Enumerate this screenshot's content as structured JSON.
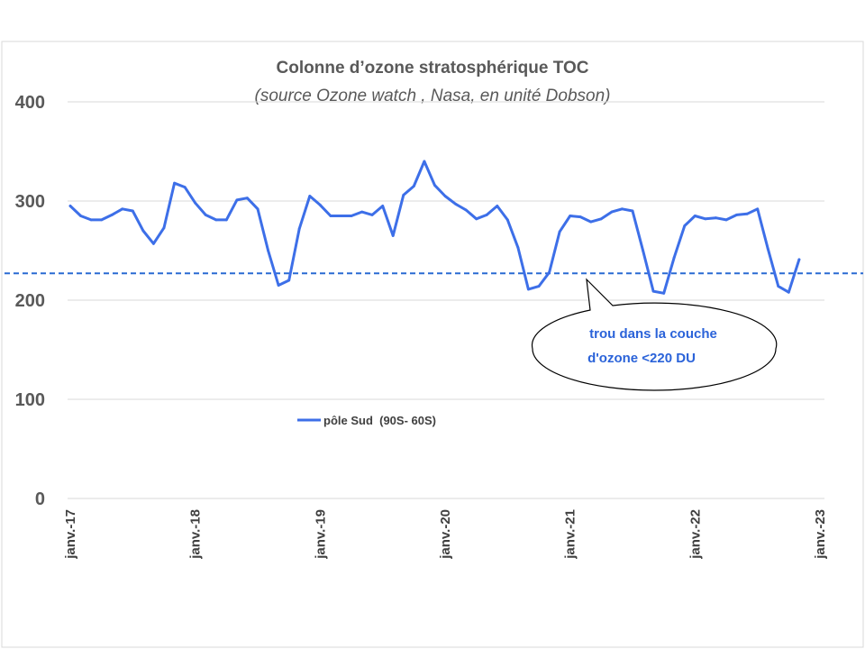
{
  "chart_data": {
    "type": "line",
    "title": "Colonne d’ozone stratosphérique TOC",
    "subtitle": "(source Ozone watch , Nasa, en unité Dobson)",
    "ylim": [
      0,
      400
    ],
    "yticks": [
      "0",
      "100",
      "200",
      "300",
      "400"
    ],
    "xlim": [
      "2017-01",
      "2023-01"
    ],
    "xticks": [
      {
        "date": "2017-01",
        "label": "janv.-17"
      },
      {
        "date": "2018-01",
        "label": "janv.-18"
      },
      {
        "date": "2019-01",
        "label": "janv.-19"
      },
      {
        "date": "2020-01",
        "label": "janv.-20"
      },
      {
        "date": "2021-01",
        "label": "janv.-21"
      },
      {
        "date": "2022-01",
        "label": "janv.-22"
      },
      {
        "date": "2023-01",
        "label": "janv.-23"
      }
    ],
    "grid": "horizontal",
    "legend_position": "center-left",
    "colors": {
      "series": "#3d6fe8",
      "threshold": "#2a6ad3",
      "grid": "#d9d9d9"
    },
    "series": [
      {
        "name": "pôle Sud  (90S- 60S)",
        "x": [
          "2017-01",
          "2017-02",
          "2017-03",
          "2017-04",
          "2017-05",
          "2017-06",
          "2017-07",
          "2017-08",
          "2017-09",
          "2017-10",
          "2017-11",
          "2017-12",
          "2018-01",
          "2018-02",
          "2018-03",
          "2018-04",
          "2018-05",
          "2018-06",
          "2018-07",
          "2018-08",
          "2018-09",
          "2018-10",
          "2018-11",
          "2018-12",
          "2019-01",
          "2019-02",
          "2019-03",
          "2019-04",
          "2019-05",
          "2019-06",
          "2019-07",
          "2019-08",
          "2019-09",
          "2019-10",
          "2019-11",
          "2019-12",
          "2020-01",
          "2020-02",
          "2020-03",
          "2020-04",
          "2020-05",
          "2020-06",
          "2020-07",
          "2020-08",
          "2020-09",
          "2020-10",
          "2020-11",
          "2020-12",
          "2021-01",
          "2021-02",
          "2021-03",
          "2021-04",
          "2021-05",
          "2021-06",
          "2021-07",
          "2021-08",
          "2021-09",
          "2021-10",
          "2021-11",
          "2021-12",
          "2022-01",
          "2022-02",
          "2022-03",
          "2022-04",
          "2022-05",
          "2022-06",
          "2022-07",
          "2022-08",
          "2022-09",
          "2022-10",
          "2022-11"
        ],
        "values": [
          295,
          285,
          281,
          281,
          286,
          292,
          290,
          270,
          257,
          273,
          318,
          314,
          298,
          286,
          281,
          281,
          301,
          303,
          292,
          250,
          215,
          220,
          272,
          305,
          296,
          285,
          285,
          285,
          289,
          286,
          295,
          265,
          306,
          315,
          340,
          316,
          305,
          297,
          291,
          282,
          286,
          295,
          281,
          253,
          211,
          214,
          228,
          269,
          285,
          284,
          279,
          282,
          289,
          292,
          290,
          250,
          209,
          207,
          243,
          275,
          285,
          282,
          283,
          281,
          286,
          287,
          292,
          252,
          214,
          208,
          241
        ]
      }
    ],
    "threshold": {
      "value": 227,
      "style": "dashed"
    },
    "callout": {
      "line1": "trou dans la couche",
      "line2": "d'ozone <220 DU"
    }
  }
}
